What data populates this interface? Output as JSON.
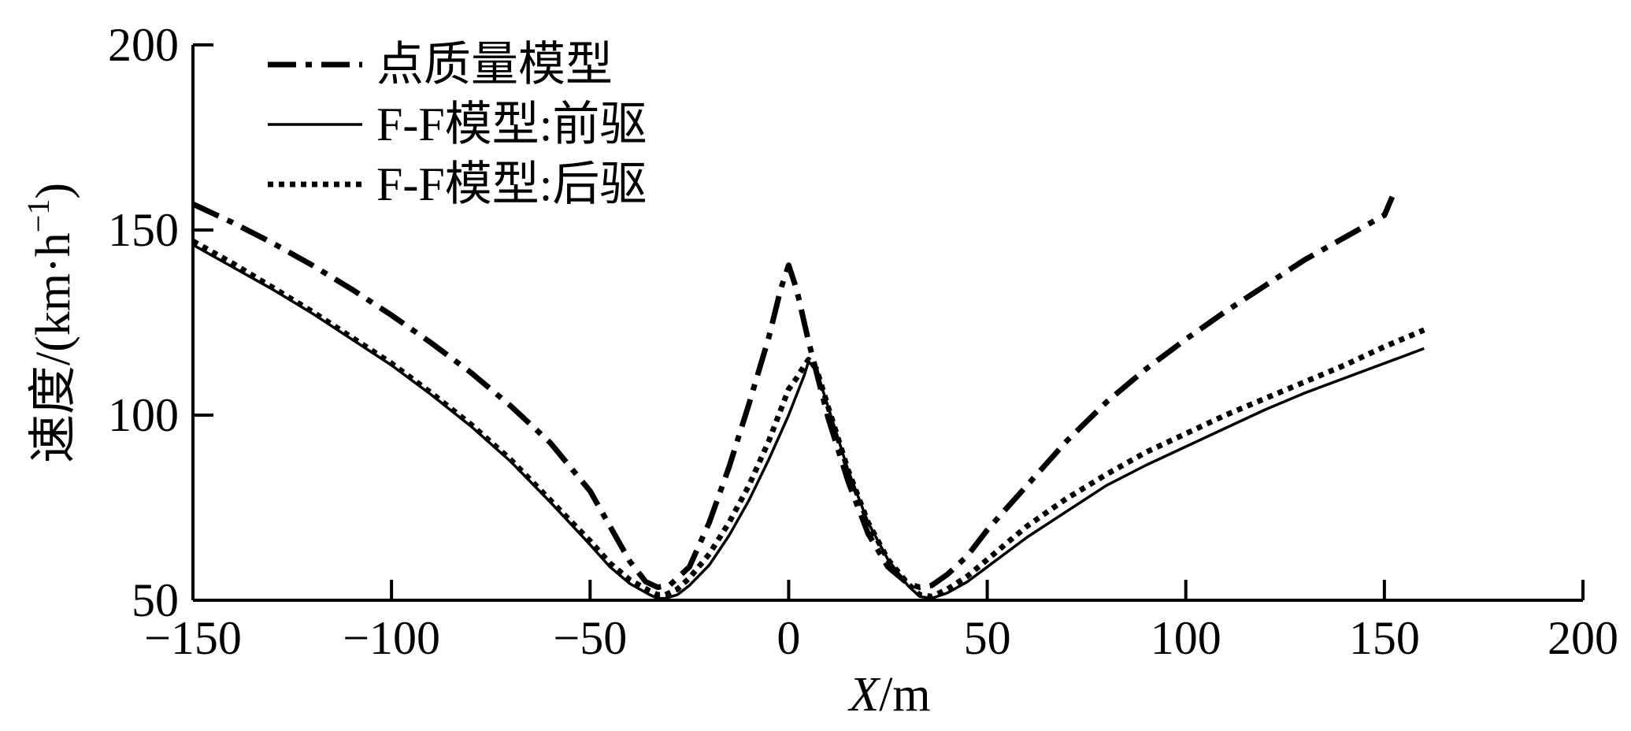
{
  "chart_data": {
    "type": "line",
    "title": "",
    "xlabel_italic": "X",
    "xlabel_rest": "/m",
    "ylabel": "速度/(km·h",
    "ylabel_sup": "−1",
    "ylabel_close": ")",
    "xlim": [
      -150,
      200
    ],
    "ylim": [
      50,
      200
    ],
    "xticks": [
      -150,
      -100,
      -50,
      0,
      50,
      100,
      150,
      200
    ],
    "xtick_labels": [
      "−150",
      "−100",
      "−50",
      "0",
      "50",
      "100",
      "150",
      "200"
    ],
    "yticks": [
      50,
      100,
      150,
      200
    ],
    "ytick_labels": [
      "50",
      "100",
      "150",
      "200"
    ],
    "legend_position": "top-left",
    "grid": false,
    "series": [
      {
        "name": "点质量模型",
        "style": "dashdot",
        "color": "#000000",
        "x": [
          -150,
          -140,
          -130,
          -120,
          -110,
          -100,
          -90,
          -80,
          -70,
          -60,
          -50,
          -45,
          -40,
          -36,
          -33,
          -30,
          -25,
          -20,
          -15,
          -10,
          -5,
          -2,
          0,
          2,
          5,
          10,
          15,
          20,
          25,
          30,
          33,
          36,
          40,
          45,
          50,
          60,
          70,
          80,
          90,
          100,
          110,
          120,
          130,
          140,
          150,
          152
        ],
        "y": [
          157,
          152,
          146.5,
          140.5,
          134,
          127,
          119.5,
          111.5,
          102.5,
          92.5,
          79.5,
          70,
          60.5,
          55,
          53.5,
          54,
          59,
          71,
          86,
          103,
          121,
          134,
          140.5,
          134,
          120,
          99,
          82,
          68,
          59,
          54.5,
          53.5,
          54,
          57,
          62,
          69,
          81,
          93,
          103.5,
          112.5,
          120.5,
          128,
          135,
          142,
          148,
          154,
          159
        ]
      },
      {
        "name": "F-F模型:前驱",
        "style": "solid",
        "color": "#000000",
        "x": [
          -150,
          -140,
          -130,
          -120,
          -110,
          -100,
          -90,
          -80,
          -70,
          -60,
          -50,
          -45,
          -40,
          -35,
          -33,
          -31,
          -28,
          -25,
          -20,
          -15,
          -10,
          -5,
          0,
          2,
          4,
          5,
          7,
          10,
          15,
          20,
          25,
          30,
          33,
          36,
          40,
          45,
          50,
          55,
          60,
          70,
          80,
          90,
          100,
          110,
          120,
          130,
          140,
          150,
          160
        ],
        "y": [
          146,
          140,
          134,
          127.5,
          120.5,
          113.5,
          105.5,
          97,
          87.5,
          76.5,
          65,
          59,
          54.5,
          51.5,
          50.5,
          50.5,
          51.5,
          54,
          59.5,
          67.5,
          77,
          88,
          100,
          105.5,
          111,
          114.5,
          112,
          102,
          85,
          71,
          61,
          54,
          51,
          50.5,
          52,
          55,
          59,
          63,
          67,
          74,
          81,
          86.5,
          91.5,
          96.5,
          101.5,
          106,
          110,
          114,
          118
        ]
      },
      {
        "name": "F-F模型:后驱",
        "style": "dotted",
        "color": "#000000",
        "x": [
          -150,
          -140,
          -130,
          -120,
          -110,
          -100,
          -90,
          -80,
          -70,
          -60,
          -50,
          -45,
          -40,
          -35,
          -33,
          -31,
          -28,
          -25,
          -20,
          -15,
          -10,
          -5,
          0,
          2,
          4,
          5,
          7,
          10,
          15,
          20,
          25,
          30,
          33,
          36,
          40,
          45,
          50,
          55,
          60,
          70,
          80,
          90,
          100,
          110,
          120,
          130,
          140,
          150,
          160
        ],
        "y": [
          147,
          141,
          134.5,
          128,
          121,
          114,
          106,
          97.5,
          88,
          77,
          66,
          60,
          55.5,
          52.5,
          51.5,
          51.5,
          53,
          56,
          62.5,
          71,
          81,
          93,
          107,
          110,
          113.5,
          115,
          112.5,
          102,
          85,
          71,
          61,
          54.5,
          51.5,
          51,
          53,
          56.5,
          61,
          65.5,
          70,
          77.5,
          84,
          90,
          95,
          100,
          104.5,
          109,
          113.5,
          118.5,
          123
        ]
      }
    ]
  }
}
